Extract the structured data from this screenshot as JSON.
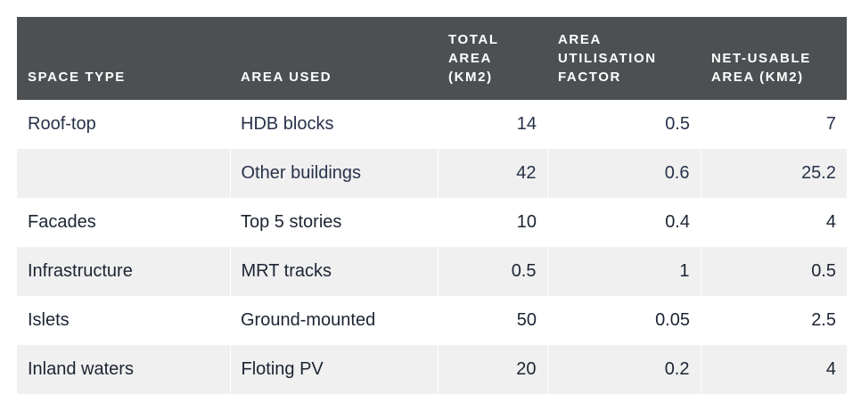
{
  "table": {
    "headers": [
      "SPACE TYPE",
      "AREA USED",
      "TOTAL AREA (KM2)",
      "AREA UTILISATION FACTOR",
      "NET-USABLE AREA (KM2)"
    ],
    "rows": [
      [
        "Roof-top",
        "HDB blocks",
        "14",
        "0.5",
        "7"
      ],
      [
        "",
        "Other buildings",
        "42",
        "0.6",
        "25.2"
      ],
      [
        "Facades",
        "Top 5 stories",
        "10",
        "0.4",
        "4"
      ],
      [
        "Infrastructure",
        "MRT tracks",
        "0.5",
        "1",
        "0.5"
      ],
      [
        "Islets",
        "Ground-mounted",
        "50",
        "0.05",
        "2.5"
      ],
      [
        "Inland waters",
        "Floting PV",
        "20",
        "0.2",
        "4"
      ]
    ]
  }
}
